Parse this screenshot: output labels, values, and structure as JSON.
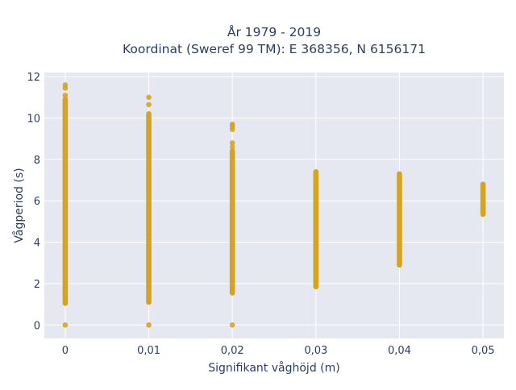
{
  "chart_data": {
    "type": "scatter",
    "title_lines": [
      "År 1979 - 2019",
      "Koordinat (Sweref 99 TM): E 368356, N 6156171"
    ],
    "xlabel": "Signifikant våghöjd (m)",
    "ylabel": "Vågperiod (s)",
    "xlim": [
      -0.0025,
      0.0525
    ],
    "ylim": [
      -0.65,
      12.2
    ],
    "x_ticks": [
      0,
      0.01,
      0.02,
      0.03,
      0.04,
      0.05
    ],
    "x_tick_labels": [
      "0",
      "0,01",
      "0,02",
      "0,03",
      "0,04",
      "0,05"
    ],
    "y_ticks": [
      0,
      2,
      4,
      6,
      8,
      10,
      12
    ],
    "y_tick_labels": [
      "0",
      "2",
      "4",
      "6",
      "8",
      "10",
      "12"
    ],
    "grid": true,
    "colors": {
      "marker": "#d4a017",
      "background": "#e5e8f0",
      "grid": "#ffffff",
      "text": "#2a3f5f"
    },
    "columns": [
      {
        "x": 0,
        "y_min": 1.05,
        "y_max": 10.9,
        "outliers": [
          0,
          11.1,
          11.45,
          11.6
        ]
      },
      {
        "x": 0.01,
        "y_min": 1.1,
        "y_max": 10.2,
        "outliers": [
          0,
          10.65,
          11.0
        ]
      },
      {
        "x": 0.02,
        "y_min": 1.55,
        "y_max": 8.4,
        "outliers": [
          0,
          8.6,
          8.8,
          9.45,
          9.6,
          9.7
        ]
      },
      {
        "x": 0.03,
        "y_min": 1.85,
        "y_max": 7.4,
        "outliers": []
      },
      {
        "x": 0.04,
        "y_min": 2.9,
        "y_max": 7.3,
        "outliers": []
      },
      {
        "x": 0.05,
        "y_min": 5.35,
        "y_max": 6.8,
        "outliers": []
      }
    ]
  }
}
